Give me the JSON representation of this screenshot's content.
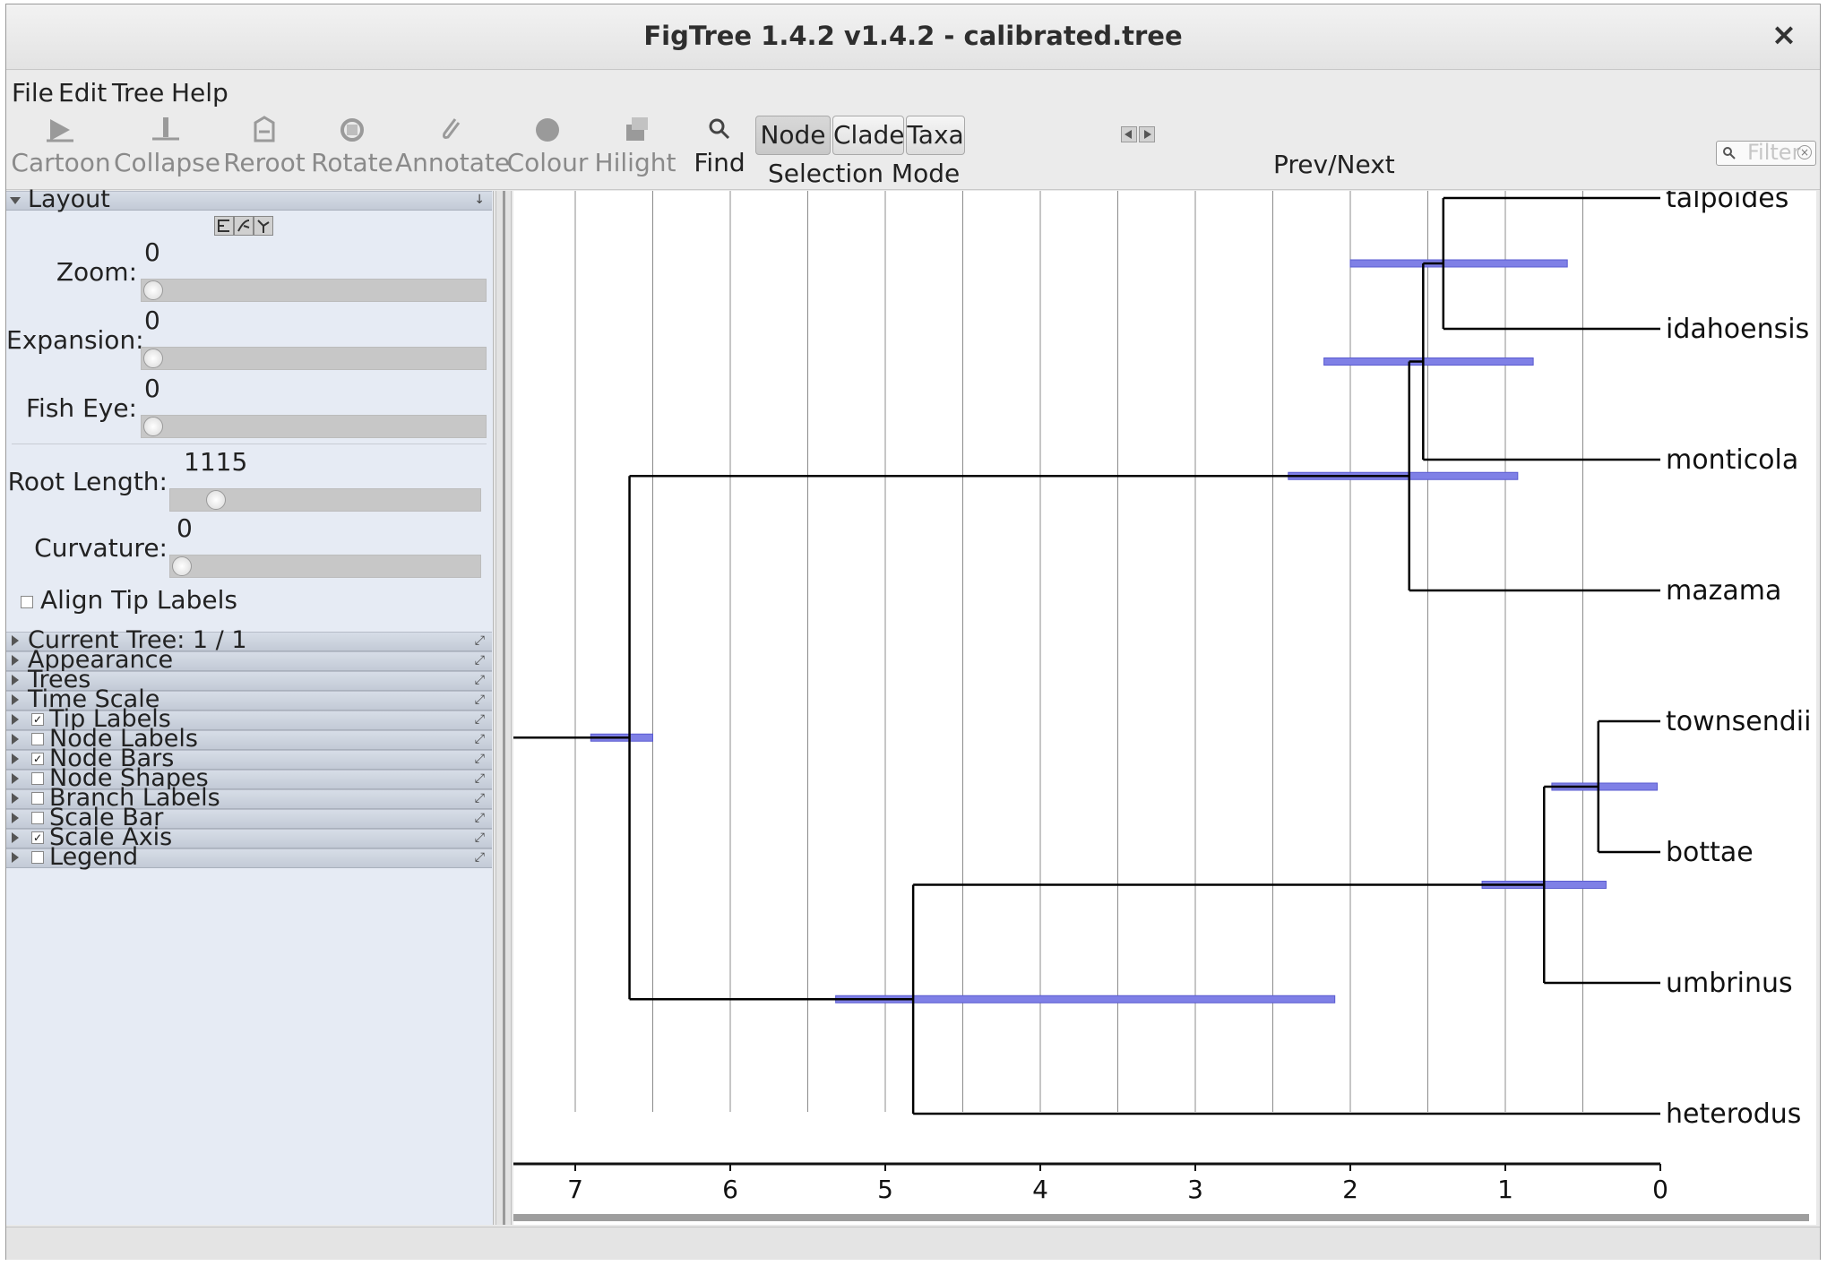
{
  "window": {
    "title": "FigTree 1.4.2 v1.4.2 - calibrated.tree",
    "close_glyph": "×"
  },
  "menu": [
    {
      "label": "File"
    },
    {
      "label": "Edit"
    },
    {
      "label": "Tree"
    },
    {
      "label": "Help"
    }
  ],
  "toolbar": {
    "tools": [
      {
        "label": "Cartoon",
        "icon": "cartoon-icon",
        "enabled": false
      },
      {
        "label": "Collapse",
        "icon": "collapse-icon",
        "enabled": false
      },
      {
        "label": "Reroot",
        "icon": "reroot-icon",
        "enabled": false
      },
      {
        "label": "Rotate",
        "icon": "rotate-icon",
        "enabled": false
      },
      {
        "label": "Annotate",
        "icon": "annotate-icon",
        "enabled": false
      },
      {
        "label": "Colour",
        "icon": "colour-icon",
        "enabled": false
      },
      {
        "label": "Hilight",
        "icon": "hilight-icon",
        "enabled": false
      },
      {
        "label": "Find",
        "icon": "find-icon",
        "enabled": true
      }
    ],
    "selection_mode": {
      "caption": "Selection Mode",
      "options": [
        "Node",
        "Clade",
        "Taxa"
      ],
      "selected": "Node"
    },
    "prev_next_label": "Prev/Next",
    "filter_placeholder": "Filter"
  },
  "layout_panel": {
    "title": "Layout",
    "zoom": {
      "label": "Zoom:",
      "value": "0"
    },
    "expansion": {
      "label": "Expansion:",
      "value": "0"
    },
    "fish_eye": {
      "label": "Fish Eye:",
      "value": "0"
    },
    "root_length": {
      "label": "Root Length:",
      "value": "1115"
    },
    "curvature": {
      "label": "Curvature:",
      "value": "0"
    },
    "align_tip_labels": {
      "label": "Align Tip Labels",
      "checked": false
    }
  },
  "sections": [
    {
      "label": "Current Tree: 1 / 1",
      "has_check": false
    },
    {
      "label": "Appearance",
      "has_check": false
    },
    {
      "label": "Trees",
      "has_check": false
    },
    {
      "label": "Time Scale",
      "has_check": false
    },
    {
      "label": "Tip Labels",
      "has_check": true,
      "checked": true
    },
    {
      "label": "Node Labels",
      "has_check": true,
      "checked": false
    },
    {
      "label": "Node Bars",
      "has_check": true,
      "checked": true
    },
    {
      "label": "Node Shapes",
      "has_check": true,
      "checked": false
    },
    {
      "label": "Branch Labels",
      "has_check": true,
      "checked": false
    },
    {
      "label": "Scale Bar",
      "has_check": true,
      "checked": false
    },
    {
      "label": "Scale Axis",
      "has_check": true,
      "checked": true
    },
    {
      "label": "Legend",
      "has_check": true,
      "checked": false
    }
  ],
  "tree": {
    "axis_ticks": [
      "7",
      "6",
      "5",
      "4",
      "3",
      "2",
      "1",
      "0"
    ],
    "root_age": 6.65,
    "taxa": [
      "talpoides",
      "idahoensis",
      "monticola",
      "mazama",
      "townsendii",
      "bottae",
      "umbrinus",
      "heterodus"
    ],
    "nodes": [
      {
        "id": "talpoides_idahoensis",
        "age": 1.4,
        "hpd": [
          2.0,
          0.6
        ]
      },
      {
        "id": "tal_ida_monticola",
        "age": 1.53,
        "hpd": [
          2.17,
          0.82
        ]
      },
      {
        "id": "north_clade",
        "age": 1.62,
        "hpd": [
          2.4,
          0.92
        ]
      },
      {
        "id": "townsendii_bottae",
        "age": 0.4,
        "hpd": [
          0.7,
          0.02
        ]
      },
      {
        "id": "tow_bot_umbrinus",
        "age": 0.75,
        "hpd": [
          1.15,
          0.35
        ]
      },
      {
        "id": "south_clade",
        "age": 4.82,
        "hpd": [
          5.32,
          2.1
        ]
      },
      {
        "id": "root",
        "age": 6.65,
        "hpd": [
          6.9,
          6.5
        ]
      }
    ],
    "colors": {
      "branch": "#000000",
      "bar": "#7f80e6",
      "grid": "#8c8c8c"
    }
  }
}
